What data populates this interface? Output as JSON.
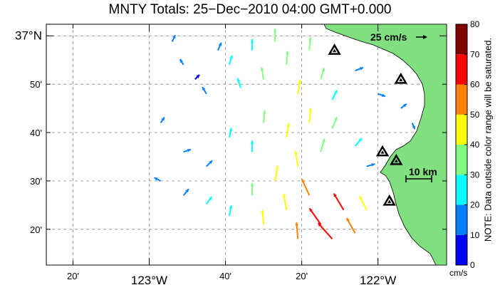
{
  "title": "MNTY Totals: 25−Dec−2010 04:00 GMT+0.000",
  "lat_ticks": [
    {
      "value": 37.0,
      "label": "37°N",
      "major": true
    },
    {
      "value": 36.8333,
      "label": "50'",
      "major": false
    },
    {
      "value": 36.6667,
      "label": "40'",
      "major": false
    },
    {
      "value": 36.5,
      "label": "30'",
      "major": false
    },
    {
      "value": 36.3333,
      "label": "20'",
      "major": false
    }
  ],
  "lon_ticks": [
    {
      "value": -123.3333,
      "label": "20'",
      "major": false
    },
    {
      "value": -123.0,
      "label": "123°W",
      "major": true
    },
    {
      "value": -122.6667,
      "label": "40'",
      "major": false
    },
    {
      "value": -122.3333,
      "label": "20'",
      "major": false
    },
    {
      "value": -122.0,
      "label": "122°W",
      "major": true
    }
  ],
  "map_extent": {
    "lon_min": -123.45,
    "lon_max": -121.7,
    "lat_min": 36.21,
    "lat_max": 37.04
  },
  "colorbar": {
    "ticks": [
      0,
      10,
      20,
      30,
      40,
      50,
      60,
      70,
      80
    ],
    "unit": "cm/s",
    "note": "NOTE: Data outside color range will be saturated.",
    "colors": [
      "#0000ff",
      "#0080ff",
      "#00ffff",
      "#80ff80",
      "#ffff00",
      "#ff8000",
      "#ff0000",
      "#800000"
    ]
  },
  "reference_vector": {
    "label": "25 cm/s",
    "speed": 25
  },
  "scale_bar": {
    "label": "10 km",
    "km": 10
  },
  "land_color": "#80e080",
  "radar_sites": [
    {
      "lon": -122.19,
      "lat": 36.95
    },
    {
      "lon": -121.9,
      "lat": 36.85
    },
    {
      "lon": -121.98,
      "lat": 36.6
    },
    {
      "lon": -121.92,
      "lat": 36.57
    },
    {
      "lon": -121.95,
      "lat": 36.43
    }
  ],
  "chart_data": {
    "type": "vector-field",
    "x_axis": "longitude (degrees east)",
    "y_axis": "latitude (degrees north)",
    "color_scale": [
      0,
      80
    ],
    "color_units": "cm/s",
    "vectors": [
      {
        "lon": -122.9,
        "lat": 36.98,
        "u": 5,
        "v": 10,
        "speed": 12
      },
      {
        "lon": -122.85,
        "lat": 36.9,
        "u": -5,
        "v": 8,
        "speed": 10
      },
      {
        "lon": -122.8,
        "lat": 36.85,
        "u": 6,
        "v": 6,
        "speed": 9
      },
      {
        "lon": -122.75,
        "lat": 36.8,
        "u": -4,
        "v": 7,
        "speed": 15
      },
      {
        "lon": -122.7,
        "lat": 36.95,
        "u": 4,
        "v": 9,
        "speed": 17
      },
      {
        "lon": -122.65,
        "lat": 36.9,
        "u": 3,
        "v": 10,
        "speed": 22
      },
      {
        "lon": -122.6,
        "lat": 36.82,
        "u": -3,
        "v": 10,
        "speed": 24
      },
      {
        "lon": -122.55,
        "lat": 36.95,
        "u": 0,
        "v": 12,
        "speed": 28
      },
      {
        "lon": -122.5,
        "lat": 36.85,
        "u": -2,
        "v": 12,
        "speed": 32
      },
      {
        "lon": -122.45,
        "lat": 36.98,
        "u": 0,
        "v": 12,
        "speed": 35
      },
      {
        "lon": -122.4,
        "lat": 36.9,
        "u": 1,
        "v": 12,
        "speed": 38
      },
      {
        "lon": -122.35,
        "lat": 36.8,
        "u": 2,
        "v": 12,
        "speed": 40
      },
      {
        "lon": -122.3,
        "lat": 36.95,
        "u": 1,
        "v": 12,
        "speed": 36
      },
      {
        "lon": -122.25,
        "lat": 36.85,
        "u": 3,
        "v": 10,
        "speed": 30
      },
      {
        "lon": -122.2,
        "lat": 36.78,
        "u": 4,
        "v": 8,
        "speed": 25
      },
      {
        "lon": -122.1,
        "lat": 36.88,
        "u": 8,
        "v": 3,
        "speed": 18
      },
      {
        "lon": -122.0,
        "lat": 36.8,
        "u": 6,
        "v": -2,
        "speed": 14
      },
      {
        "lon": -121.9,
        "lat": 36.75,
        "u": 5,
        "v": 4,
        "speed": 12
      },
      {
        "lon": -121.85,
        "lat": 36.7,
        "u": 2,
        "v": -5,
        "speed": 10
      },
      {
        "lon": -122.95,
        "lat": 36.7,
        "u": 4,
        "v": 6,
        "speed": 10
      },
      {
        "lon": -122.85,
        "lat": 36.6,
        "u": 6,
        "v": 2,
        "speed": 14
      },
      {
        "lon": -122.75,
        "lat": 36.55,
        "u": 5,
        "v": 5,
        "speed": 16
      },
      {
        "lon": -122.65,
        "lat": 36.65,
        "u": 2,
        "v": 9,
        "speed": 22
      },
      {
        "lon": -122.55,
        "lat": 36.6,
        "u": 0,
        "v": 12,
        "speed": 28
      },
      {
        "lon": -122.5,
        "lat": 36.7,
        "u": 1,
        "v": 12,
        "speed": 33
      },
      {
        "lon": -122.4,
        "lat": 36.65,
        "u": 2,
        "v": 12,
        "speed": 40
      },
      {
        "lon": -122.35,
        "lat": 36.55,
        "u": -2,
        "v": 12,
        "speed": 45
      },
      {
        "lon": -122.3,
        "lat": 36.7,
        "u": 1,
        "v": 12,
        "speed": 42
      },
      {
        "lon": -122.25,
        "lat": 36.6,
        "u": 3,
        "v": 11,
        "speed": 38
      },
      {
        "lon": -122.2,
        "lat": 36.68,
        "u": 4,
        "v": 10,
        "speed": 33
      },
      {
        "lon": -122.1,
        "lat": 36.62,
        "u": 6,
        "v": 7,
        "speed": 24
      },
      {
        "lon": -122.05,
        "lat": 36.55,
        "u": 7,
        "v": 2,
        "speed": 18
      },
      {
        "lon": -122.95,
        "lat": 36.5,
        "u": -6,
        "v": 3,
        "speed": 12
      },
      {
        "lon": -122.85,
        "lat": 36.45,
        "u": 4,
        "v": 5,
        "speed": 16
      },
      {
        "lon": -122.75,
        "lat": 36.42,
        "u": 5,
        "v": 7,
        "speed": 20
      },
      {
        "lon": -122.65,
        "lat": 36.38,
        "u": 2,
        "v": 10,
        "speed": 25
      },
      {
        "lon": -122.55,
        "lat": 36.45,
        "u": 0,
        "v": 12,
        "speed": 33
      },
      {
        "lon": -122.5,
        "lat": 36.35,
        "u": -1,
        "v": 12,
        "speed": 40
      },
      {
        "lon": -122.45,
        "lat": 36.5,
        "u": 2,
        "v": 12,
        "speed": 45
      },
      {
        "lon": -122.4,
        "lat": 36.4,
        "u": -2,
        "v": 12,
        "speed": 48
      },
      {
        "lon": -122.35,
        "lat": 36.3,
        "u": -1,
        "v": 12,
        "speed": 50
      },
      {
        "lon": -122.3,
        "lat": 36.45,
        "u": -5,
        "v": 11,
        "speed": 55
      },
      {
        "lon": -122.25,
        "lat": 36.35,
        "u": -7,
        "v": 10,
        "speed": 62
      },
      {
        "lon": -122.2,
        "lat": 36.3,
        "u": -8,
        "v": 9,
        "speed": 68
      },
      {
        "lon": -122.15,
        "lat": 36.4,
        "u": -6,
        "v": 10,
        "speed": 60
      },
      {
        "lon": -122.1,
        "lat": 36.32,
        "u": -5,
        "v": 9,
        "speed": 52
      },
      {
        "lon": -122.05,
        "lat": 36.4,
        "u": -4,
        "v": 8,
        "speed": 44
      }
    ]
  }
}
